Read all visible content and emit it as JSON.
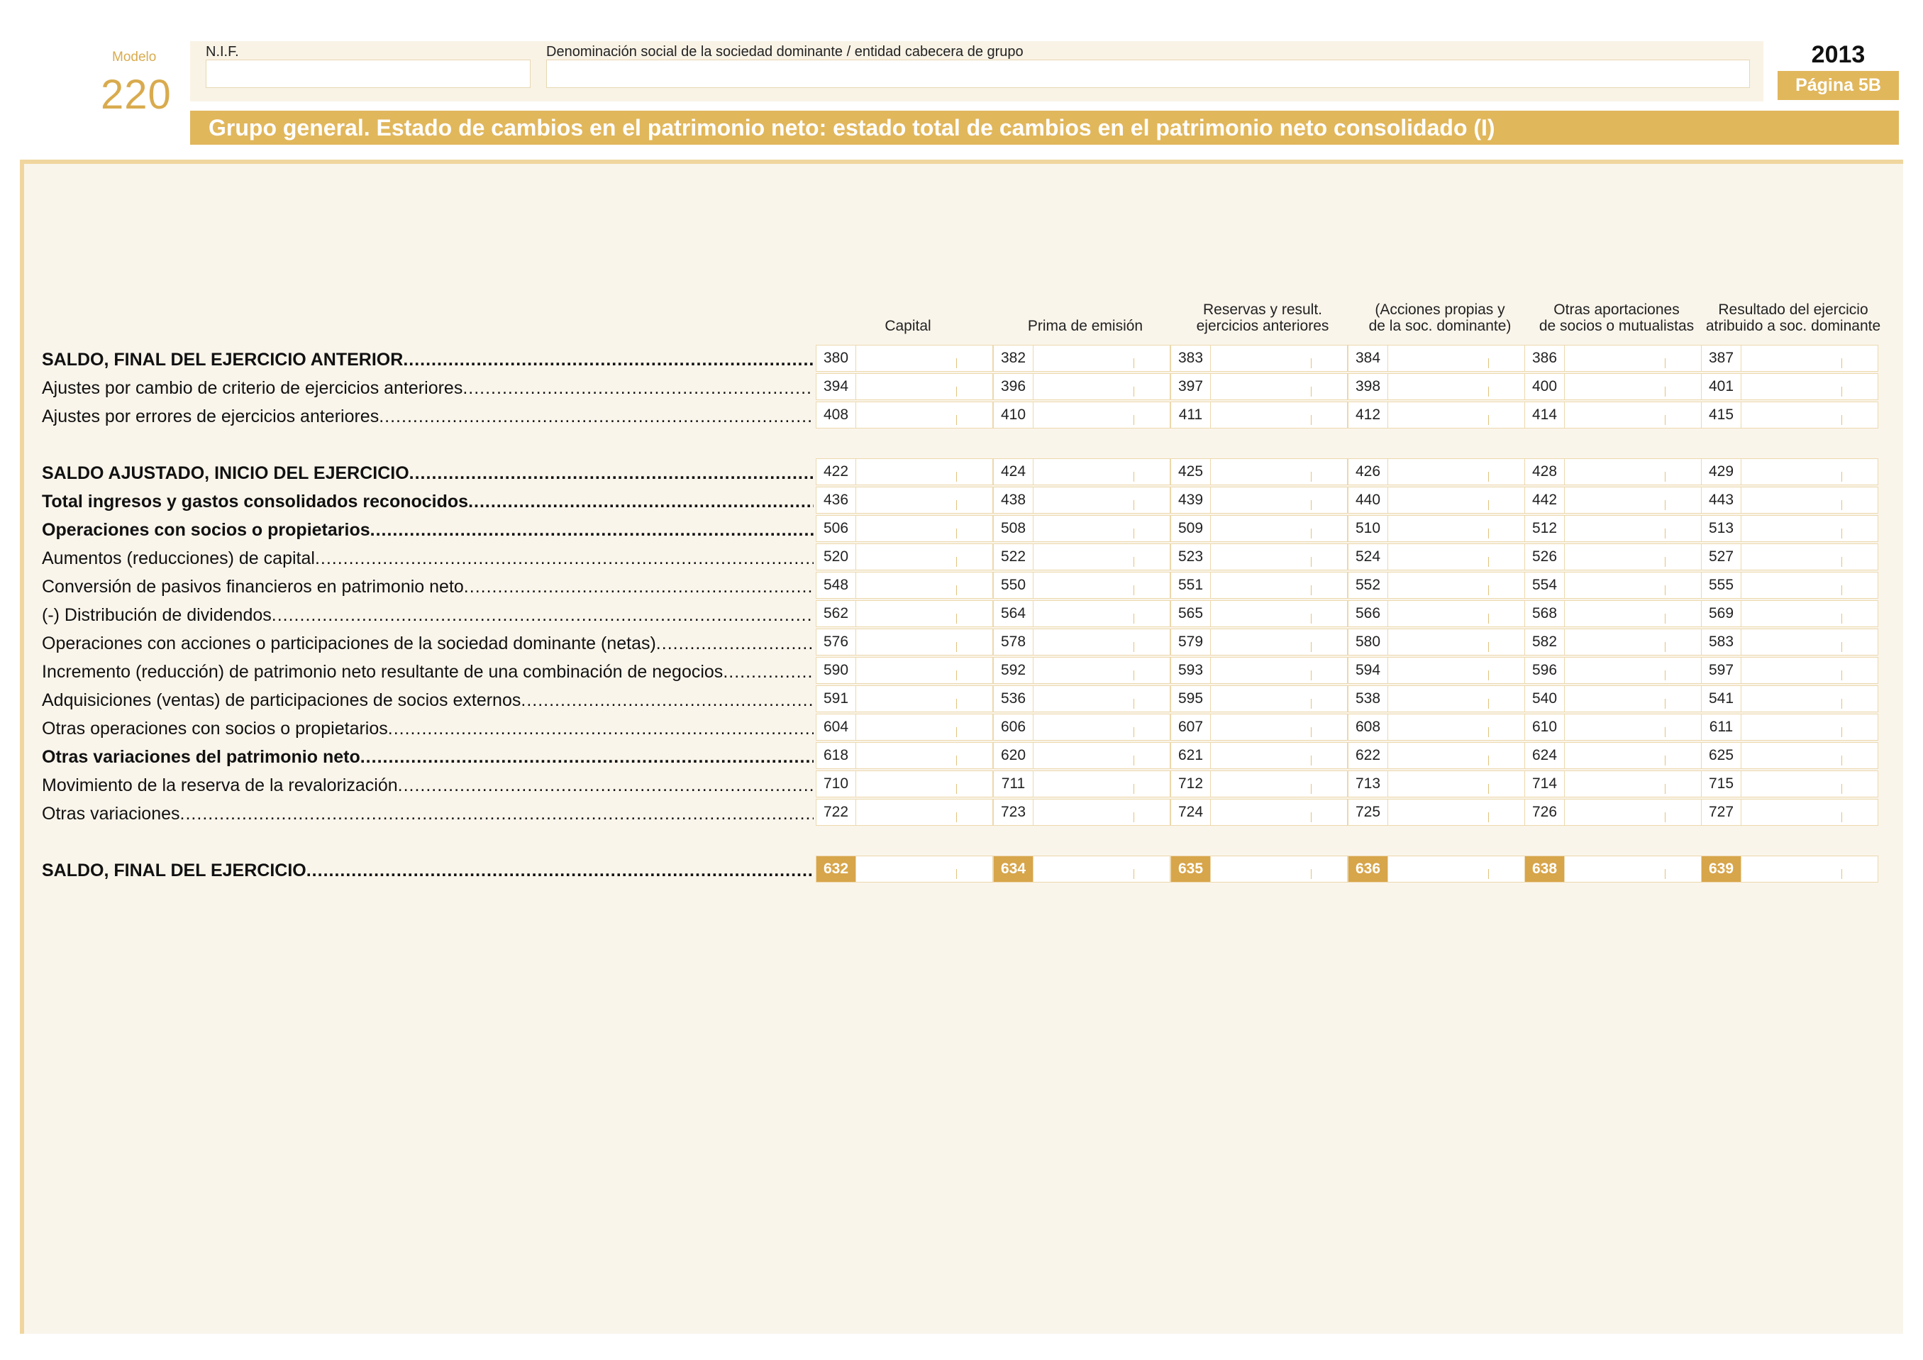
{
  "header": {
    "modelo_label": "Modelo",
    "modelo_number": "220",
    "nif_label": "N.I.F.",
    "nif_value": "",
    "denom_label": "Denominación social de la sociedad dominante / entidad cabecera de grupo",
    "denom_value": "",
    "year": "2013",
    "page": "Página 5B",
    "title": "Grupo general. Estado de cambios en el patrimonio neto: estado total de cambios en el patrimonio neto consolidado (I)"
  },
  "columns": [
    {
      "line1": "",
      "line2": "Capital"
    },
    {
      "line1": "",
      "line2": "Prima de emisión"
    },
    {
      "line1": "Reservas y result.",
      "line2": "ejercicios anteriores"
    },
    {
      "line1": "(Acciones propias y",
      "line2": "de la soc. dominante)"
    },
    {
      "line1": "Otras aportaciones",
      "line2": "de socios o mutualistas"
    },
    {
      "line1": "Resultado del ejercicio",
      "line2": "atribuido a soc. dominante"
    }
  ],
  "rows": [
    {
      "label": "SALDO, FINAL DEL EJERCICIO ANTERIOR",
      "bold": true,
      "codes": [
        "380",
        "382",
        "383",
        "384",
        "386",
        "387"
      ]
    },
    {
      "label": "Ajustes por cambio de criterio de ejercicios anteriores",
      "bold": false,
      "codes": [
        "394",
        "396",
        "397",
        "398",
        "400",
        "401"
      ]
    },
    {
      "label": "Ajustes por errores de ejercicios anteriores",
      "bold": false,
      "codes": [
        "408",
        "410",
        "411",
        "412",
        "414",
        "415"
      ]
    },
    {
      "label": "SALDO AJUSTADO, INICIO DEL EJERCICIO",
      "bold": true,
      "codes": [
        "422",
        "424",
        "425",
        "426",
        "428",
        "429"
      ]
    },
    {
      "label": "Total ingresos y gastos consolidados reconocidos",
      "bold": true,
      "codes": [
        "436",
        "438",
        "439",
        "440",
        "442",
        "443"
      ]
    },
    {
      "label": "Operaciones con socios o propietarios",
      "bold": true,
      "codes": [
        "506",
        "508",
        "509",
        "510",
        "512",
        "513"
      ]
    },
    {
      "label": "Aumentos (reducciones) de capital",
      "bold": false,
      "codes": [
        "520",
        "522",
        "523",
        "524",
        "526",
        "527"
      ]
    },
    {
      "label": "Conversión de pasivos financieros en patrimonio neto",
      "bold": false,
      "codes": [
        "548",
        "550",
        "551",
        "552",
        "554",
        "555"
      ]
    },
    {
      "label": "(-) Distribución de dividendos",
      "bold": false,
      "codes": [
        "562",
        "564",
        "565",
        "566",
        "568",
        "569"
      ]
    },
    {
      "label": "Operaciones con acciones o participaciones de la sociedad dominante (netas)",
      "bold": false,
      "codes": [
        "576",
        "578",
        "579",
        "580",
        "582",
        "583"
      ]
    },
    {
      "label": "Incremento (reducción) de patrimonio neto resultante de una combinación de negocios",
      "bold": false,
      "codes": [
        "590",
        "592",
        "593",
        "594",
        "596",
        "597"
      ]
    },
    {
      "label": "Adquisiciones (ventas) de participaciones de socios externos",
      "bold": false,
      "codes": [
        "591",
        "536",
        "595",
        "538",
        "540",
        "541"
      ]
    },
    {
      "label": "Otras operaciones con socios o propietarios",
      "bold": false,
      "codes": [
        "604",
        "606",
        "607",
        "608",
        "610",
        "611"
      ]
    },
    {
      "label": "Otras variaciones del patrimonio neto",
      "bold": true,
      "codes": [
        "618",
        "620",
        "621",
        "622",
        "624",
        "625"
      ]
    },
    {
      "label": "Movimiento de la reserva de la revalorización",
      "bold": false,
      "codes": [
        "710",
        "711",
        "712",
        "713",
        "714",
        "715"
      ]
    },
    {
      "label": "Otras variaciones",
      "bold": false,
      "codes": [
        "722",
        "723",
        "724",
        "725",
        "726",
        "727"
      ]
    },
    {
      "label": "SALDO, FINAL DEL EJERCICIO",
      "bold": true,
      "highlight": true,
      "codes": [
        "632",
        "634",
        "635",
        "636",
        "638",
        "639"
      ]
    }
  ],
  "colors": {
    "accent": "#e1b75c",
    "accent_dark": "#d7a54a",
    "panel_bg": "#faf5eb"
  }
}
